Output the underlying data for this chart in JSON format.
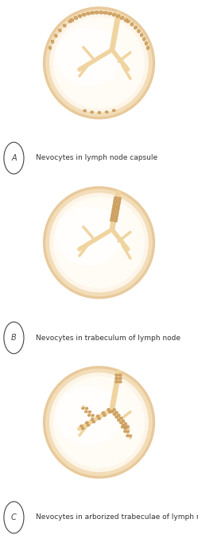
{
  "bg_color": "#ffffff",
  "capsule_outer_color": "#e8c99a",
  "capsule_mid_color": "#f2ddb8",
  "capsule_inner_color": "#fdf5e8",
  "inner_parenchyma": "#fffcf5",
  "center_glow": "#ffffff",
  "trabecular_color": "#f0d4a0",
  "trabecular_edge": "#e0c090",
  "nevocyte_fill": "#d4a96a",
  "nevocyte_edge": "#c09050",
  "label_color": "#444444",
  "text_color": "#333333",
  "label_A": "A",
  "label_B": "B",
  "label_C": "C",
  "text_A": "Nevocytes in lymph node capsule",
  "text_B": "Nevocytes in trabeculum of lymph node",
  "text_C": "Nevocytes in arborized trabeculae of lymph node",
  "font_size_label": 7,
  "font_size_text": 6.5
}
